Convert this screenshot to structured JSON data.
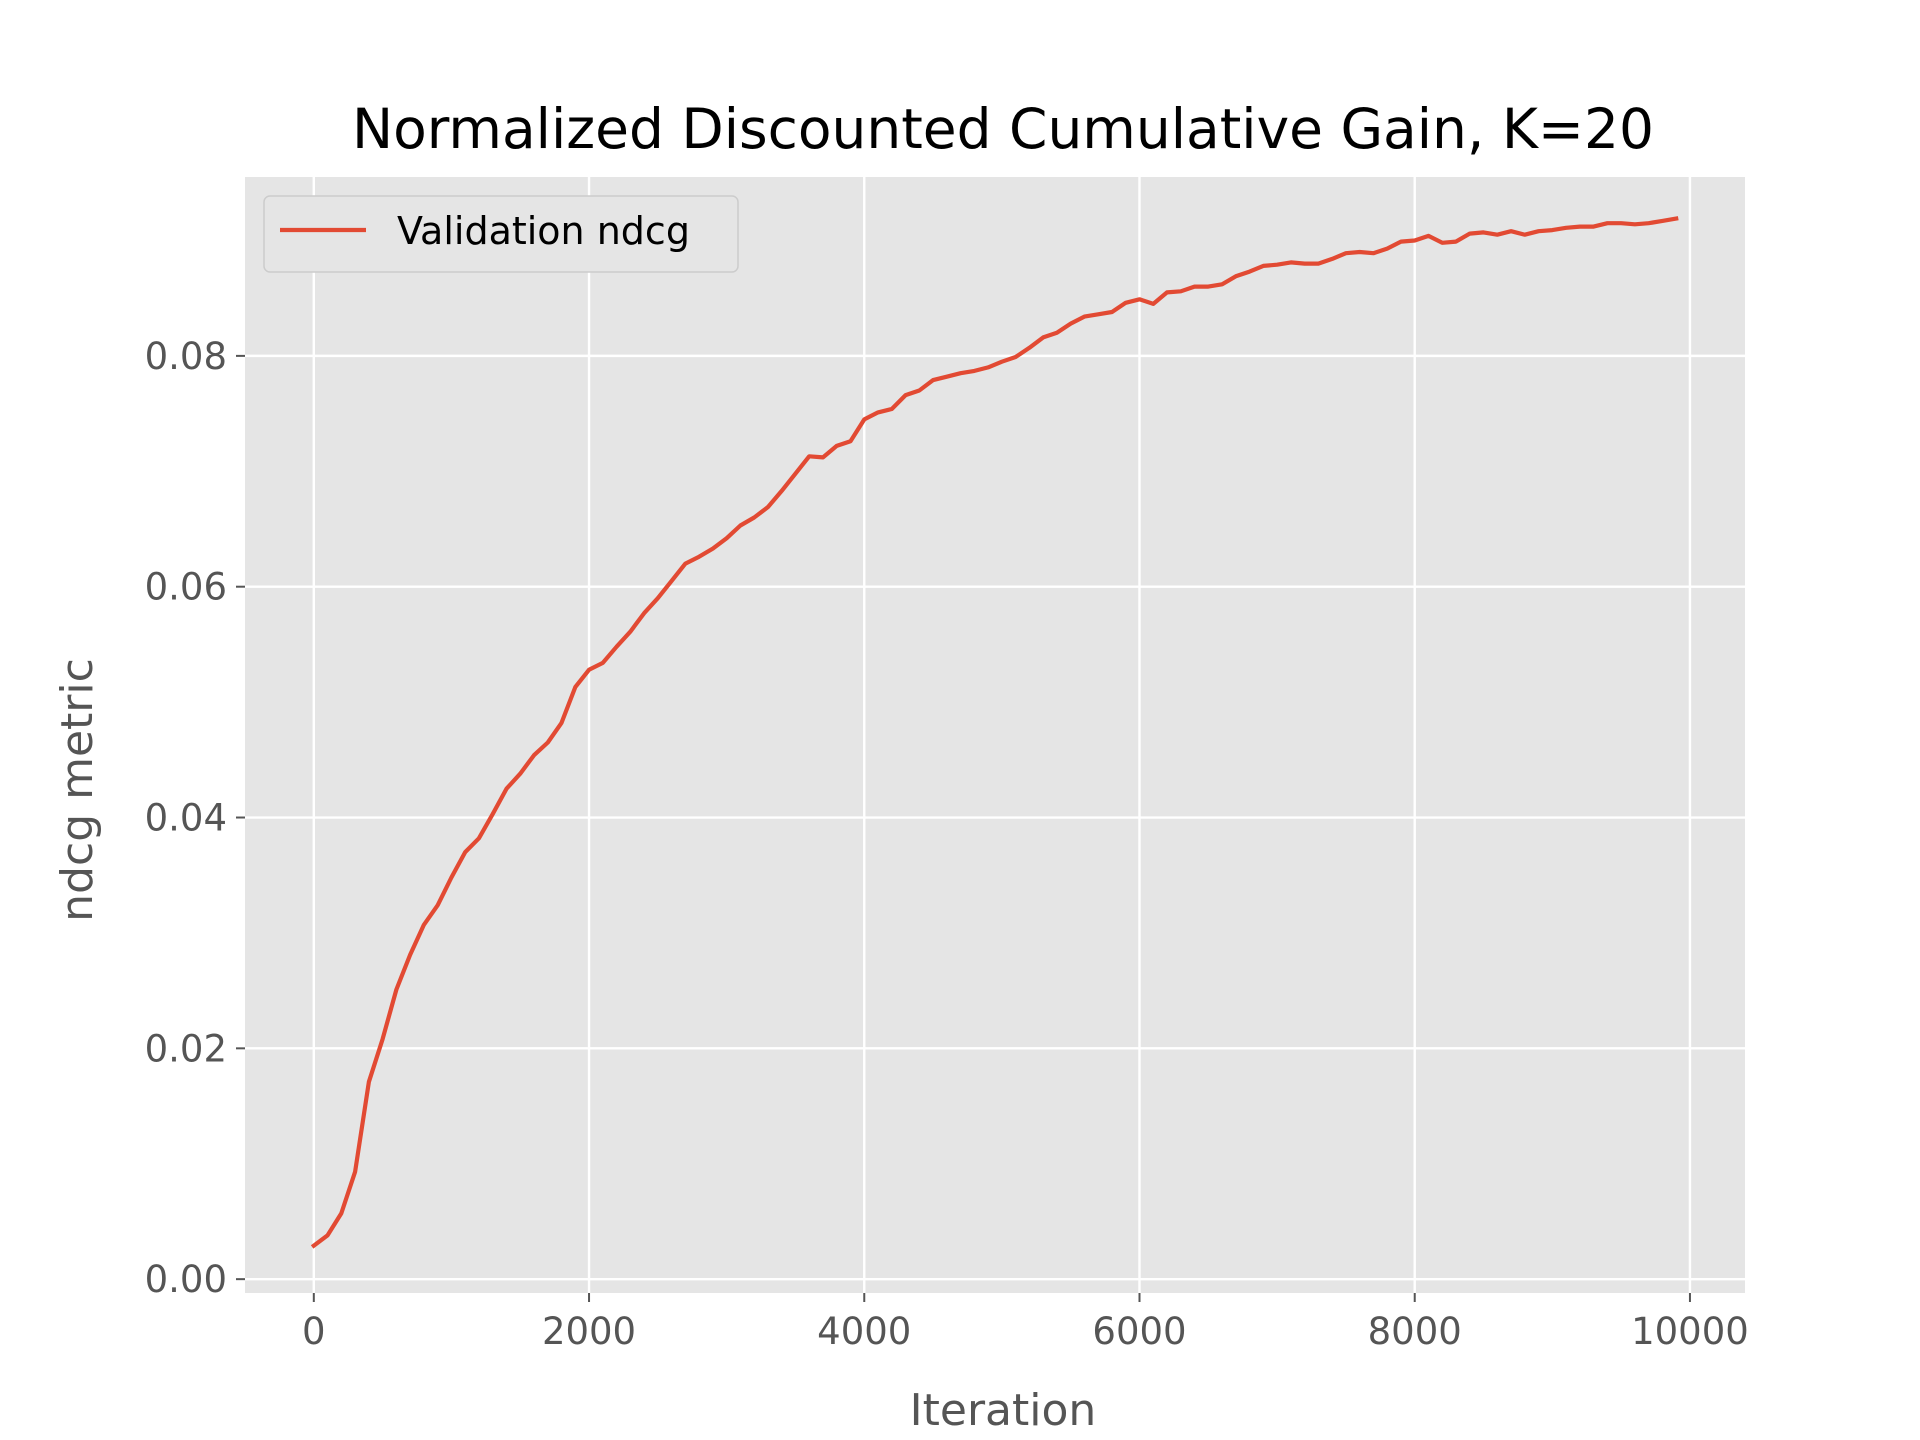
{
  "chart_data": {
    "type": "line",
    "title": "Normalized Discounted Cumulative Gain, K=20",
    "xlabel": "Iteration",
    "ylabel": "ndcg metric",
    "xlim": [
      -500,
      10400
    ],
    "ylim": [
      -0.0012,
      0.0955
    ],
    "xticks": [
      0,
      2000,
      4000,
      6000,
      8000,
      10000
    ],
    "xtick_labels": [
      "0",
      "2000",
      "4000",
      "6000",
      "8000",
      "10000"
    ],
    "yticks": [
      0.0,
      0.02,
      0.04,
      0.06,
      0.08
    ],
    "ytick_labels": [
      "0.00",
      "0.02",
      "0.04",
      "0.06",
      "0.08"
    ],
    "grid": true,
    "legend_position": "upper-left",
    "background_color": "#E5E5E5",
    "grid_color": "#FFFFFF",
    "series": [
      {
        "name": "Validation ndcg",
        "color": "#E24A33",
        "x": [
          0,
          100,
          200,
          300,
          400,
          500,
          600,
          700,
          800,
          900,
          1000,
          1100,
          1200,
          1300,
          1400,
          1500,
          1600,
          1700,
          1800,
          1900,
          2000,
          2100,
          2200,
          2300,
          2400,
          2500,
          2600,
          2700,
          2800,
          2900,
          3000,
          3100,
          3200,
          3300,
          3400,
          3500,
          3600,
          3700,
          3800,
          3900,
          4000,
          4100,
          4200,
          4300,
          4400,
          4500,
          4600,
          4700,
          4800,
          4900,
          5000,
          5100,
          5200,
          5300,
          5400,
          5500,
          5600,
          5700,
          5800,
          5900,
          6000,
          6100,
          6200,
          6300,
          6400,
          6500,
          6600,
          6700,
          6800,
          6900,
          7000,
          7100,
          7200,
          7300,
          7400,
          7500,
          7600,
          7700,
          7800,
          7900,
          8000,
          8100,
          8200,
          8300,
          8400,
          8500,
          8600,
          8700,
          8800,
          8900,
          9000,
          9100,
          9200,
          9300,
          9400,
          9500,
          9600,
          9700,
          9800,
          9900
        ],
        "y": [
          0.0029,
          0.0038,
          0.0057,
          0.0093,
          0.0171,
          0.0208,
          0.0251,
          0.0281,
          0.0307,
          0.0324,
          0.0348,
          0.037,
          0.0382,
          0.0403,
          0.0425,
          0.0438,
          0.0454,
          0.0465,
          0.0482,
          0.0513,
          0.0528,
          0.0534,
          0.0548,
          0.0561,
          0.0577,
          0.059,
          0.0605,
          0.062,
          0.0626,
          0.0633,
          0.0642,
          0.0653,
          0.066,
          0.0669,
          0.0683,
          0.0698,
          0.0713,
          0.0712,
          0.0722,
          0.0726,
          0.0745,
          0.0751,
          0.0754,
          0.0766,
          0.077,
          0.0779,
          0.0782,
          0.0785,
          0.0787,
          0.079,
          0.0795,
          0.0799,
          0.0807,
          0.0816,
          0.082,
          0.0828,
          0.0834,
          0.0836,
          0.0838,
          0.0846,
          0.0849,
          0.0845,
          0.0855,
          0.0856,
          0.086,
          0.086,
          0.0862,
          0.0869,
          0.0873,
          0.0878,
          0.0879,
          0.0881,
          0.088,
          0.088,
          0.0884,
          0.0889,
          0.089,
          0.0889,
          0.0893,
          0.0899,
          0.09,
          0.0904,
          0.0898,
          0.0899,
          0.0906,
          0.0907,
          0.0905,
          0.0908,
          0.0905,
          0.0908,
          0.0909,
          0.0911,
          0.0912,
          0.0912,
          0.0915,
          0.0915,
          0.0914,
          0.0915,
          0.0917,
          0.0919
        ]
      }
    ]
  }
}
